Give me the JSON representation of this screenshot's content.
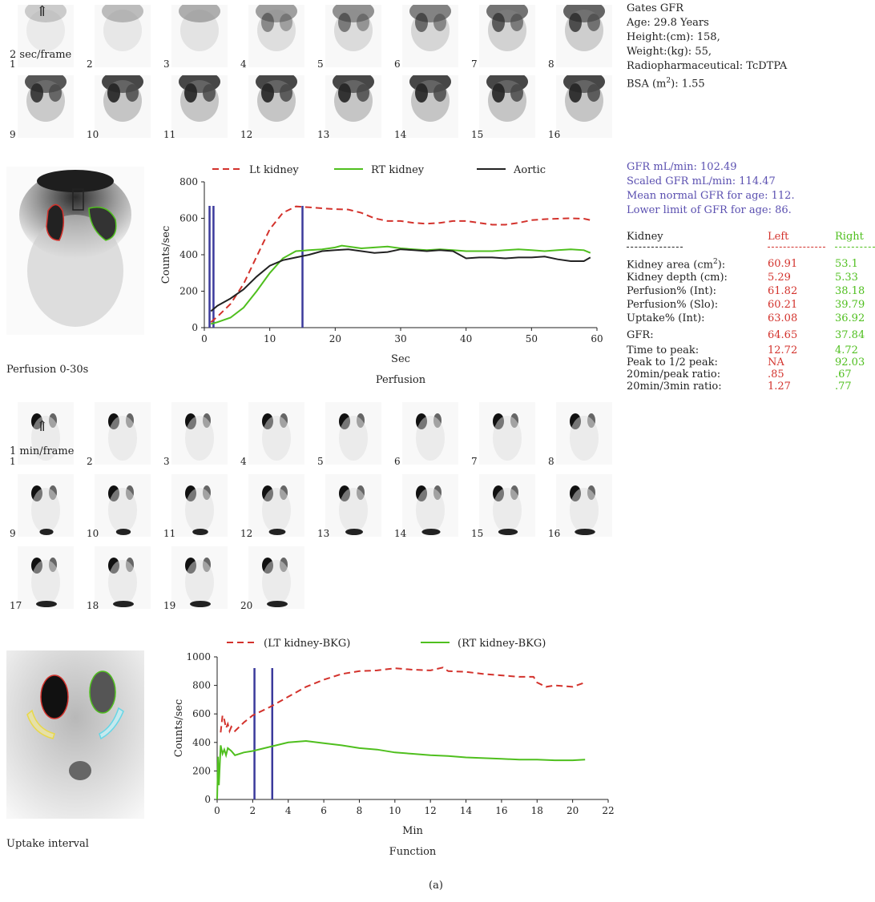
{
  "perfusion_frames": {
    "rate_label": "2 sec/frame",
    "labels": [
      "1",
      "2",
      "3",
      "4",
      "5",
      "6",
      "7",
      "8",
      "9",
      "10",
      "11",
      "12",
      "13",
      "14",
      "15",
      "16"
    ]
  },
  "function_frames": {
    "rate_label": "1 min/frame",
    "labels": [
      "1",
      "2",
      "3",
      "4",
      "5",
      "6",
      "7",
      "8",
      "9",
      "10",
      "11",
      "12",
      "13",
      "14",
      "15",
      "16",
      "17",
      "18",
      "19",
      "20"
    ]
  },
  "patient": {
    "title": "Gates GFR",
    "age": "Age: 29.8 Years",
    "height": "Height:(cm): 158,",
    "weight": "Weight:(kg): 55,",
    "radiopharm": "Radiopharmaceutical: TcDTPA",
    "bsa_prefix": "BSA (m",
    "bsa_sup": "2",
    "bsa_suffix": "): 1.55"
  },
  "gfr_summary": {
    "gfr": "GFR mL/min: 102.49",
    "scaled": "Scaled GFR mL/min: 114.47",
    "mean_normal": "Mean normal GFR for age: 112.",
    "lower_limit": "Lower limit of GFR for age: 86."
  },
  "kidney_table": {
    "header": {
      "label": "Kidney",
      "left": "Left",
      "right": "Right"
    },
    "rows": [
      {
        "label": "Kidney area (cm",
        "sup": "2",
        "label_suffix": "):",
        "left": "60.91",
        "right": "53.1"
      },
      {
        "label": "Kidney depth (cm):",
        "left": "5.29",
        "right": "5.33"
      },
      {
        "label": "Perfusion% (Int):",
        "left": "61.82",
        "right": "38.18"
      },
      {
        "label": "Perfusion% (Slo):",
        "left": "60.21",
        "right": "39.79"
      },
      {
        "label": "Uptake% (Int):",
        "left": "63.08",
        "right": "36.92"
      },
      {
        "label": "GFR:",
        "left": "64.65",
        "right": "37.84"
      }
    ],
    "rows2": [
      {
        "label": "Time to peak:",
        "left": "12.72",
        "right": "4.72"
      },
      {
        "label": "Peak to 1/2 peak:",
        "left": "NA",
        "right": "92.03"
      },
      {
        "label": "20min/peak ratio:",
        "left": ".85",
        "right": ".67"
      },
      {
        "label": "20min/3min ratio:",
        "left": "1.27",
        "right": ".77"
      }
    ]
  },
  "captions": {
    "perfusion_image": "Perfusion 0-30s",
    "uptake_image": "Uptake interval",
    "panel": "(a)"
  },
  "colors": {
    "left": "#d3322c",
    "right": "#4fbf1e",
    "aortic": "#222222",
    "marker": "#3b3a9c",
    "info": "#5a4fb0"
  },
  "chart_data": [
    {
      "type": "line",
      "title": "Perfusion",
      "xlabel": "Sec",
      "ylabel": "Counts/sec",
      "xlim": [
        0,
        60
      ],
      "ylim": [
        0,
        800
      ],
      "xticks": [
        0,
        10,
        20,
        30,
        40,
        50,
        60
      ],
      "yticks": [
        0,
        200,
        400,
        600,
        800
      ],
      "markers_x": [
        0.8,
        1.4,
        15
      ],
      "legend_position": "top",
      "series": [
        {
          "name": "Lt kidney",
          "style": "dashed",
          "color": "#d3322c",
          "x": [
            1,
            2,
            4,
            6,
            8,
            10,
            12,
            14,
            16,
            18,
            20,
            22,
            24,
            26,
            28,
            30,
            32,
            34,
            36,
            38,
            40,
            42,
            44,
            46,
            48,
            50,
            52,
            54,
            56,
            58,
            59
          ],
          "y": [
            30,
            60,
            130,
            240,
            390,
            540,
            630,
            665,
            660,
            655,
            650,
            648,
            630,
            600,
            585,
            585,
            575,
            570,
            575,
            585,
            585,
            575,
            565,
            565,
            575,
            590,
            595,
            598,
            600,
            598,
            590
          ]
        },
        {
          "name": "RT kidney",
          "style": "solid",
          "color": "#4fbf1e",
          "x": [
            1,
            2,
            4,
            6,
            8,
            10,
            12,
            14,
            16,
            18,
            20,
            21,
            22,
            24,
            26,
            28,
            30,
            32,
            34,
            36,
            38,
            40,
            42,
            44,
            46,
            48,
            50,
            52,
            54,
            56,
            58,
            59
          ],
          "y": [
            20,
            30,
            55,
            110,
            200,
            300,
            380,
            420,
            425,
            430,
            440,
            450,
            445,
            435,
            440,
            445,
            435,
            430,
            425,
            430,
            425,
            420,
            420,
            420,
            425,
            430,
            425,
            420,
            425,
            430,
            425,
            410
          ]
        },
        {
          "name": "Aortic",
          "style": "solid",
          "color": "#222222",
          "x": [
            1,
            2,
            4,
            6,
            8,
            10,
            12,
            14,
            16,
            18,
            20,
            22,
            24,
            26,
            28,
            30,
            32,
            34,
            36,
            38,
            40,
            42,
            44,
            46,
            48,
            50,
            52,
            54,
            56,
            58,
            59
          ],
          "y": [
            90,
            120,
            160,
            210,
            280,
            340,
            370,
            385,
            400,
            420,
            425,
            430,
            420,
            410,
            415,
            430,
            425,
            420,
            425,
            420,
            380,
            385,
            385,
            380,
            385,
            385,
            390,
            375,
            365,
            365,
            385
          ]
        }
      ]
    },
    {
      "type": "line",
      "title": "Function",
      "xlabel": "Min",
      "ylabel": "Counts/sec",
      "xlim": [
        0,
        22
      ],
      "ylim": [
        0,
        1000
      ],
      "xticks": [
        0,
        2,
        4,
        6,
        8,
        10,
        12,
        14,
        16,
        18,
        20,
        22
      ],
      "yticks": [
        0,
        200,
        400,
        600,
        800,
        1000
      ],
      "markers_x": [
        2.1,
        3.1
      ],
      "legend_position": "top",
      "series": [
        {
          "name": "(LT kidney-BKG)",
          "style": "dashed",
          "color": "#d3322c",
          "x": [
            0.2,
            0.3,
            0.4,
            0.5,
            0.6,
            0.7,
            0.8,
            1.0,
            1.5,
            2.0,
            3.0,
            4.0,
            5.0,
            6.0,
            7.0,
            8.0,
            9.0,
            10.0,
            11.0,
            12.0,
            12.7,
            13.0,
            14.0,
            15.0,
            16.0,
            17.0,
            17.8,
            18.0,
            18.5,
            19.0,
            20.0,
            20.7
          ],
          "y": [
            470,
            590,
            560,
            500,
            530,
            480,
            510,
            480,
            540,
            590,
            650,
            720,
            790,
            840,
            880,
            900,
            905,
            920,
            910,
            905,
            925,
            900,
            895,
            880,
            870,
            860,
            860,
            820,
            790,
            800,
            790,
            820
          ]
        },
        {
          "name": "(RT kidney-BKG)",
          "style": "solid",
          "color": "#4fbf1e",
          "x": [
            0,
            0.05,
            0.1,
            0.2,
            0.3,
            0.4,
            0.5,
            0.6,
            0.8,
            1.0,
            1.5,
            2.0,
            3.0,
            4.0,
            5.0,
            6.0,
            7.0,
            8.0,
            9.0,
            10.0,
            11.0,
            12.0,
            13.0,
            14.0,
            15.0,
            16.0,
            17.0,
            18.0,
            19.0,
            20.0,
            20.7
          ],
          "y": [
            0,
            300,
            100,
            380,
            320,
            350,
            310,
            360,
            340,
            310,
            330,
            340,
            370,
            400,
            410,
            395,
            380,
            360,
            350,
            330,
            320,
            310,
            305,
            295,
            290,
            285,
            280,
            280,
            275,
            275,
            280
          ]
        }
      ]
    }
  ]
}
